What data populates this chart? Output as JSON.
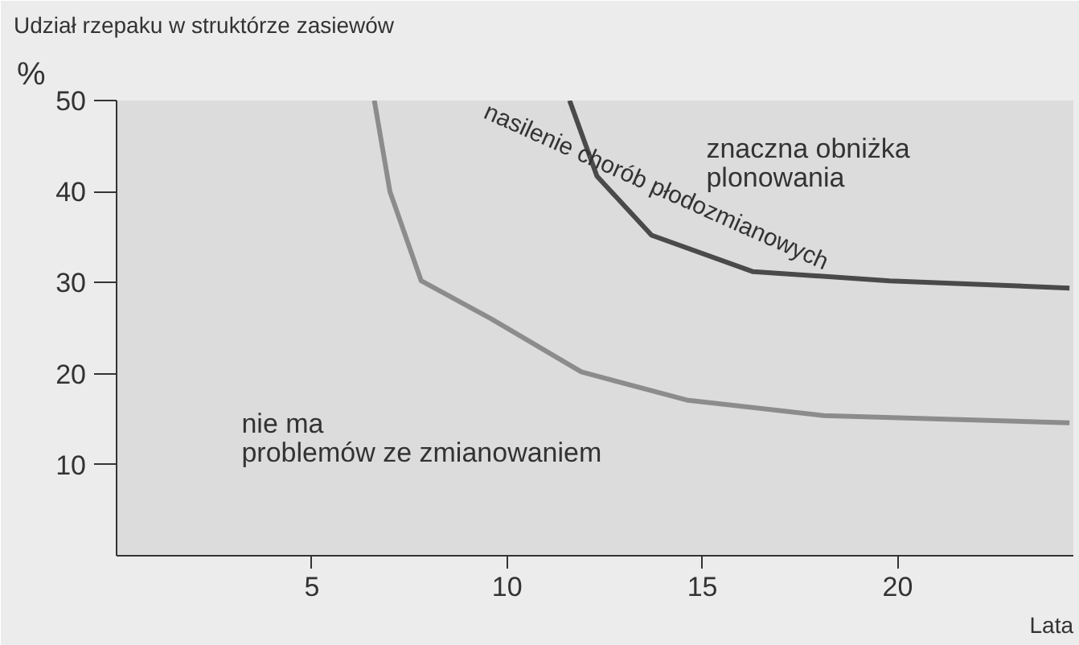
{
  "chart_data": {
    "type": "line",
    "ylabel": "Udział rzepaku w struktórze zasiewów",
    "xlabel": "Lata",
    "series": [
      {
        "color": "#8c8c8c",
        "x": [
          6.6,
          7.0,
          7.8,
          9.6,
          11.9,
          14.6,
          18.1,
          24.4
        ],
        "values": [
          50,
          40,
          30.2,
          26,
          20.2,
          17.1,
          15.4,
          14.6
        ]
      },
      {
        "color": "#4a4a4a",
        "x": [
          11.6,
          12.3,
          13.7,
          16.3,
          19.8,
          24.4
        ],
        "values": [
          50,
          41.7,
          35.2,
          31.2,
          30.2,
          29.4
        ]
      }
    ],
    "annotations": [
      "%",
      "nie ma\nproblemów ze zmianowaniem",
      "znaczna obniżka\nplonowania",
      "nasilenie chorób płodozmianowych"
    ],
    "xlim": [
      0,
      24.5
    ],
    "ylim": [
      0,
      50
    ],
    "xticks": [
      5,
      10,
      15,
      20
    ],
    "yticks": [
      10,
      20,
      30,
      40,
      50
    ],
    "grid": false
  }
}
